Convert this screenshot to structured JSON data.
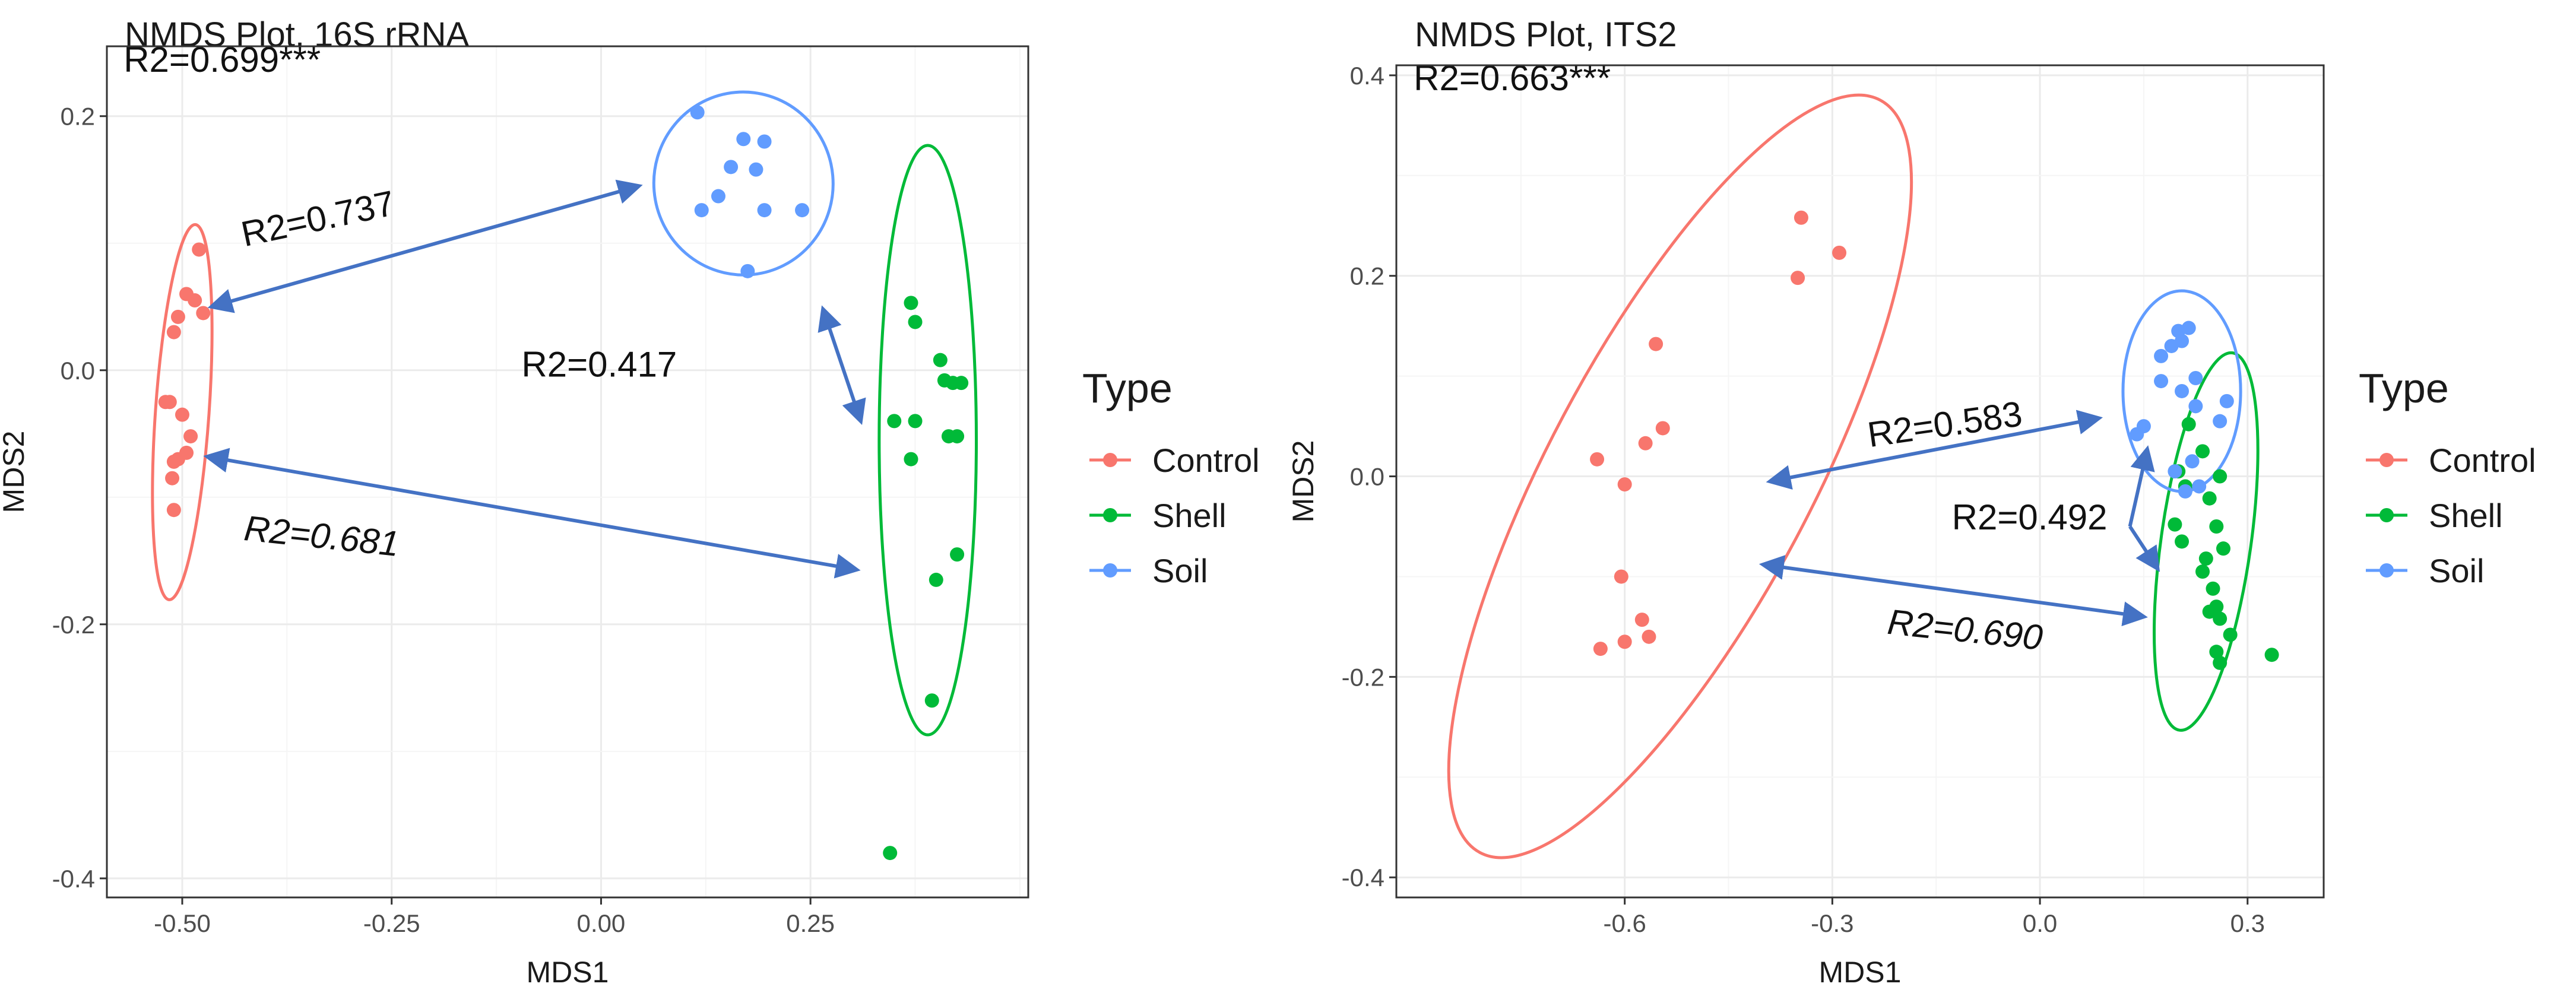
{
  "colors": {
    "Control": "#F8766D",
    "Shell": "#00BA38",
    "Soil": "#619CFF",
    "arrow": "#4472C4",
    "grid_major": "#EBEBEB",
    "grid_minor": "#F5F5F5",
    "panel_border": "#333333",
    "text": "#1a1a1a",
    "axis_text": "#4D4D4D"
  },
  "chart_data": [
    {
      "type": "scatter",
      "title": "NMDS Plot, 16S rRNA",
      "xlabel": "MDS1",
      "ylabel": "MDS2",
      "xlim": [
        -0.59,
        0.51
      ],
      "ylim": [
        -0.415,
        0.255
      ],
      "x_major_ticks": [
        -0.5,
        -0.25,
        0.0,
        0.25
      ],
      "x_tick_labels": [
        "-0.50",
        "-0.25",
        "0.00",
        "0.25"
      ],
      "y_major_ticks": [
        -0.4,
        -0.2,
        0.0,
        0.2
      ],
      "y_tick_labels": [
        "-0.4",
        "-0.2",
        "0.0",
        "0.2"
      ],
      "grid": true,
      "legend": {
        "title": "Type",
        "position": "right",
        "entries": [
          "Control",
          "Shell",
          "Soil"
        ]
      },
      "series": [
        {
          "name": "Control",
          "points": [
            [
              -0.48,
              0.095
            ],
            [
              -0.505,
              0.042
            ],
            [
              -0.485,
              0.055
            ],
            [
              -0.495,
              0.06
            ],
            [
              -0.475,
              0.045
            ],
            [
              -0.51,
              0.03
            ],
            [
              -0.52,
              -0.025
            ],
            [
              -0.515,
              -0.025
            ],
            [
              -0.5,
              -0.035
            ],
            [
              -0.49,
              -0.052
            ],
            [
              -0.505,
              -0.07
            ],
            [
              -0.495,
              -0.065
            ],
            [
              -0.51,
              -0.072
            ],
            [
              -0.512,
              -0.085
            ],
            [
              -0.51,
              -0.11
            ]
          ]
        },
        {
          "name": "Shell",
          "points": [
            [
              0.37,
              0.053
            ],
            [
              0.375,
              0.038
            ],
            [
              0.405,
              0.008
            ],
            [
              0.41,
              -0.008
            ],
            [
              0.42,
              -0.01
            ],
            [
              0.43,
              -0.01
            ],
            [
              0.35,
              -0.04
            ],
            [
              0.375,
              -0.04
            ],
            [
              0.415,
              -0.052
            ],
            [
              0.425,
              -0.052
            ],
            [
              0.37,
              -0.07
            ],
            [
              0.425,
              -0.145
            ],
            [
              0.4,
              -0.165
            ],
            [
              0.395,
              -0.26
            ],
            [
              0.345,
              -0.38
            ]
          ]
        },
        {
          "name": "Soil",
          "points": [
            [
              0.115,
              0.203
            ],
            [
              0.17,
              0.182
            ],
            [
              0.195,
              0.18
            ],
            [
              0.155,
              0.16
            ],
            [
              0.185,
              0.158
            ],
            [
              0.14,
              0.137
            ],
            [
              0.12,
              0.126
            ],
            [
              0.195,
              0.126
            ],
            [
              0.24,
              0.126
            ],
            [
              0.175,
              0.078
            ]
          ]
        }
      ],
      "ellipses": [
        {
          "group": "Control",
          "center": [
            -0.5,
            -0.033
          ],
          "semi_x": 0.032,
          "semi_y": 0.148,
          "angle_deg": 4
        },
        {
          "group": "Shell",
          "center": [
            0.39,
            -0.055
          ],
          "semi_x": 0.058,
          "semi_y": 0.232,
          "angle_deg": 0
        },
        {
          "group": "Soil",
          "center": [
            0.17,
            0.147
          ],
          "semi_x": 0.107,
          "semi_y": 0.072,
          "angle_deg": -5
        }
      ],
      "annotations": [
        {
          "text": "R2=0.699***",
          "style": "normal",
          "at": [
            -0.57,
            0.235
          ],
          "anchor": "start"
        },
        {
          "text": "R2=0.737",
          "style": "normal",
          "at": [
            -0.335,
            0.11
          ],
          "anchor": "middle",
          "rotate": -12
        },
        {
          "text": "R2=0.417",
          "style": "normal",
          "at": [
            -0.095,
            -0.005
          ],
          "anchor": "start"
        },
        {
          "text": "R2=0.681",
          "style": "italic",
          "at": [
            -0.335,
            -0.14
          ],
          "anchor": "middle",
          "rotate": 6
        }
      ],
      "arrows": [
        {
          "from": [
            -0.465,
            0.05
          ],
          "to": [
            0.045,
            0.145
          ],
          "heads": "both"
        },
        {
          "from": [
            0.265,
            0.048
          ],
          "to": [
            0.31,
            -0.04
          ],
          "heads": "both"
        },
        {
          "from": [
            -0.47,
            -0.068
          ],
          "to": [
            0.305,
            -0.157
          ],
          "heads": "both"
        }
      ]
    },
    {
      "type": "scatter",
      "title": "NMDS Plot, ITS2",
      "xlabel": "MDS1",
      "ylabel": "MDS2",
      "xlim": [
        -0.93,
        0.41
      ],
      "ylim": [
        -0.42,
        0.41
      ],
      "x_major_ticks": [
        -0.6,
        -0.3,
        0.0,
        0.3
      ],
      "x_tick_labels": [
        "-0.6",
        "-0.3",
        "0.0",
        "0.3"
      ],
      "y_major_ticks": [
        -0.4,
        -0.2,
        0.0,
        0.2,
        0.4
      ],
      "y_tick_labels": [
        "-0.4",
        "-0.2",
        "0.0",
        "0.2",
        "0.4"
      ],
      "grid": true,
      "legend": {
        "title": "Type",
        "position": "right",
        "entries": [
          "Control",
          "Shell",
          "Soil"
        ]
      },
      "series": [
        {
          "name": "Control",
          "points": [
            [
              -0.345,
              0.258
            ],
            [
              -0.29,
              0.223
            ],
            [
              -0.35,
              0.198
            ],
            [
              -0.555,
              0.132
            ],
            [
              -0.545,
              0.048
            ],
            [
              -0.57,
              0.033
            ],
            [
              -0.64,
              0.017
            ],
            [
              -0.6,
              -0.008
            ],
            [
              -0.605,
              -0.1
            ],
            [
              -0.575,
              -0.143
            ],
            [
              -0.565,
              -0.16
            ],
            [
              -0.6,
              -0.165
            ],
            [
              -0.635,
              -0.172
            ]
          ]
        },
        {
          "name": "Shell",
          "points": [
            [
              0.215,
              0.052
            ],
            [
              0.235,
              0.025
            ],
            [
              0.2,
              0.005
            ],
            [
              0.26,
              0.0
            ],
            [
              0.21,
              -0.01
            ],
            [
              0.245,
              -0.022
            ],
            [
              0.195,
              -0.048
            ],
            [
              0.205,
              -0.065
            ],
            [
              0.255,
              -0.05
            ],
            [
              0.265,
              -0.072
            ],
            [
              0.24,
              -0.082
            ],
            [
              0.235,
              -0.095
            ],
            [
              0.25,
              -0.112
            ],
            [
              0.255,
              -0.13
            ],
            [
              0.245,
              -0.135
            ],
            [
              0.26,
              -0.142
            ],
            [
              0.275,
              -0.158
            ],
            [
              0.255,
              -0.175
            ],
            [
              0.26,
              -0.186
            ],
            [
              0.335,
              -0.178
            ]
          ]
        },
        {
          "name": "Soil",
          "points": [
            [
              0.2,
              0.145
            ],
            [
              0.215,
              0.148
            ],
            [
              0.205,
              0.135
            ],
            [
              0.19,
              0.13
            ],
            [
              0.175,
              0.12
            ],
            [
              0.225,
              0.098
            ],
            [
              0.175,
              0.095
            ],
            [
              0.205,
              0.085
            ],
            [
              0.27,
              0.075
            ],
            [
              0.225,
              0.07
            ],
            [
              0.15,
              0.05
            ],
            [
              0.26,
              0.055
            ],
            [
              0.14,
              0.042
            ],
            [
              0.195,
              0.005
            ],
            [
              0.22,
              0.015
            ],
            [
              0.23,
              -0.01
            ],
            [
              0.21,
              -0.015
            ]
          ]
        }
      ],
      "ellipses": [
        {
          "group": "Control",
          "center": [
            -0.52,
            0.0
          ],
          "semi_x": 0.19,
          "semi_y": 0.425,
          "angle_deg": 28
        },
        {
          "group": "Shell",
          "center": [
            0.24,
            -0.065
          ],
          "semi_x": 0.065,
          "semi_y": 0.19,
          "angle_deg": 8
        },
        {
          "group": "Soil",
          "center": [
            0.205,
            0.085
          ],
          "semi_x": 0.085,
          "semi_y": 0.1,
          "angle_deg": 0
        }
      ],
      "annotations": [
        {
          "text": "R2=0.663***",
          "style": "normal",
          "at": [
            -0.905,
            0.385
          ],
          "anchor": "start"
        },
        {
          "text": "R2=0.583",
          "style": "normal",
          "at": [
            -0.135,
            0.04
          ],
          "anchor": "middle",
          "rotate": -8
        },
        {
          "text": "R2=0.492",
          "style": "normal",
          "at": [
            -0.015,
            -0.053
          ],
          "anchor": "middle"
        },
        {
          "text": "R2=0.690",
          "style": "italic",
          "at": [
            -0.11,
            -0.165
          ],
          "anchor": "middle",
          "rotate": 6
        }
      ],
      "arrows": [
        {
          "from": [
            -0.39,
            -0.005
          ],
          "to": [
            0.085,
            0.058
          ],
          "heads": "both"
        },
        {
          "from": [
            -0.4,
            -0.088
          ],
          "to": [
            0.15,
            -0.14
          ],
          "heads": "both"
        },
        {
          "from": [
            0.13,
            -0.05
          ],
          "to": [
            0.155,
            0.027
          ],
          "heads": "end"
        },
        {
          "from": [
            0.13,
            -0.05
          ],
          "to": [
            0.17,
            -0.092
          ],
          "heads": "end"
        }
      ]
    }
  ]
}
